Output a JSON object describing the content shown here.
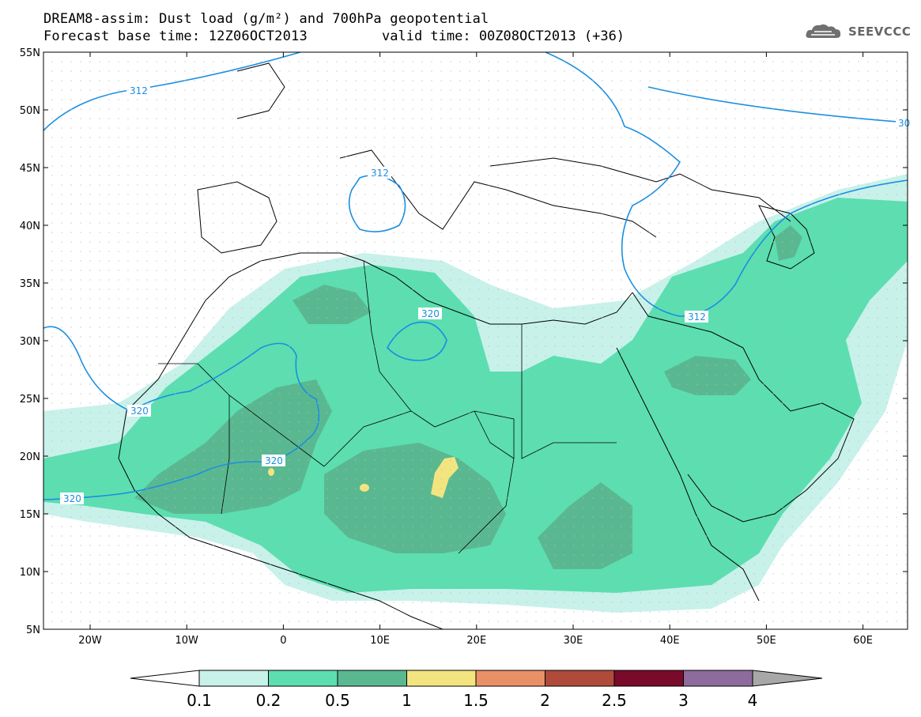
{
  "header": {
    "title_line1": "DREAM8-assim: Dust load (g/m²) and 700hPa geopotential",
    "title_line2": "Forecast base time: 12Z06OCT2013",
    "valid_time": "valid time: 00Z08OCT2013 (+36)"
  },
  "logo": {
    "text": "SEEVCCC",
    "icon": "cloud-logo-icon"
  },
  "map": {
    "lat_labels": [
      "55N",
      "50N",
      "45N",
      "40N",
      "35N",
      "30N",
      "25N",
      "20N",
      "15N",
      "10N",
      "5N"
    ],
    "lon_labels": [
      "20W",
      "10W",
      "0",
      "10E",
      "20E",
      "30E",
      "40E",
      "50E",
      "60E"
    ],
    "contour_labels": [
      "312",
      "312",
      "312",
      "30",
      "320",
      "320",
      "320",
      "320"
    ],
    "contour_color": "#1a8fe0"
  },
  "colorbar": {
    "labels": [
      "0.1",
      "0.2",
      "0.5",
      "1",
      "1.5",
      "2",
      "2.5",
      "3",
      "4"
    ],
    "colors": [
      "#c8f1ea",
      "#5cdeb0",
      "#5ab891",
      "#f2e580",
      "#ea9068",
      "#b04a3a",
      "#7a0a2a",
      "#8c6c9c",
      "#a8a8a8"
    ]
  }
}
